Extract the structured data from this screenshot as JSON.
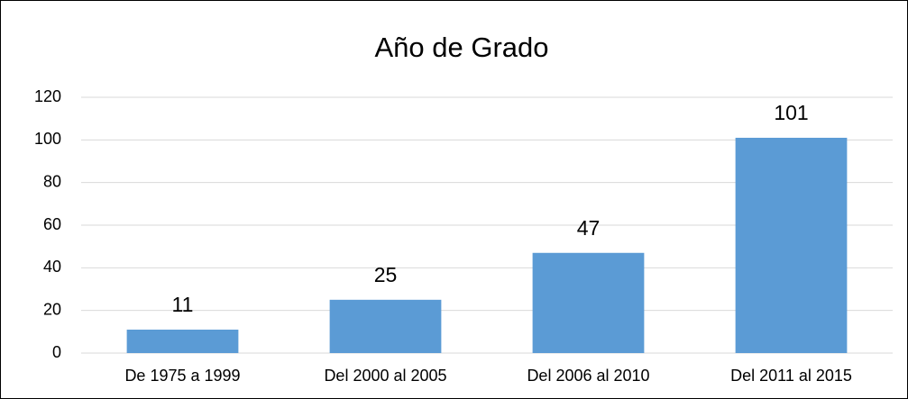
{
  "chart_data": {
    "type": "bar",
    "title": "Año de Grado",
    "categories": [
      "De 1975 a 1999",
      "Del 2000 al 2005",
      "Del 2006 al 2010",
      "Del 2011 al 2015"
    ],
    "values": [
      11,
      25,
      47,
      101
    ],
    "color": "#5b9bd5",
    "ylim": [
      0,
      120
    ],
    "yticks": [
      0,
      20,
      40,
      60,
      80,
      100,
      120
    ],
    "grid": true
  }
}
